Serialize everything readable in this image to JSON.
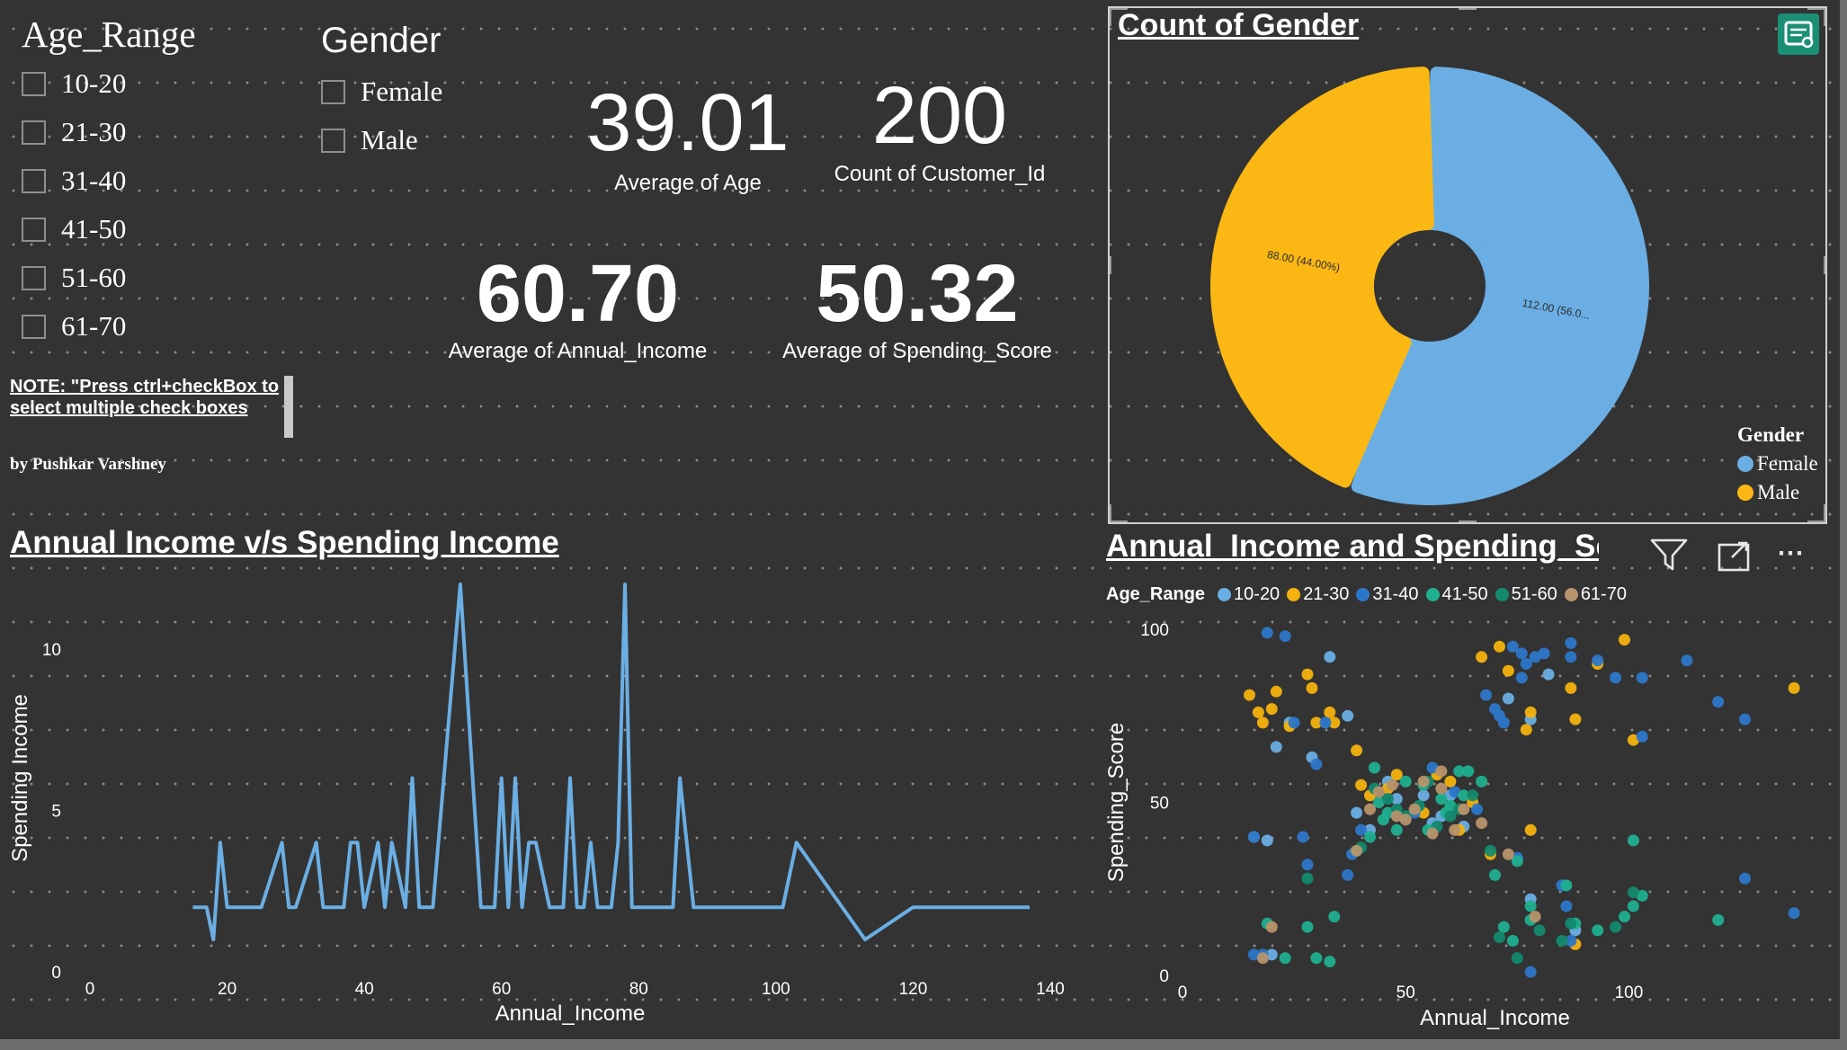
{
  "age_slicer": {
    "title": "Age_Range",
    "items": [
      "10-20",
      "21-30",
      "31-40",
      "41-50",
      "51-60",
      "61-70"
    ]
  },
  "gender_slicer": {
    "title": "Gender",
    "items": [
      "Female",
      "Male"
    ]
  },
  "note": {
    "text": "NOTE: \"Press ctrl+checkBox to select multiple check boxes",
    "author": "by Pushkar Varshney"
  },
  "kpis": {
    "avg_age": {
      "value": "39.01",
      "label": "Average of Age"
    },
    "count_customer": {
      "value": "200",
      "label": "Count of Customer_Id"
    },
    "avg_income": {
      "value": "60.70",
      "label": "Average of Annual_Income"
    },
    "avg_spending": {
      "value": "50.32",
      "label": "Average of Spending_Score"
    }
  },
  "colors": {
    "female": "#6aaee3",
    "male": "#fbb714",
    "line": "#6aaee3",
    "age_ranges": [
      "#6aaee3",
      "#f4b20e",
      "#2d77c9",
      "#1fb08f",
      "#138a6e",
      "#b8946c"
    ]
  },
  "icons": {
    "focus": "focus-mode-icon",
    "filter": "filter-icon",
    "expand": "expand-icon",
    "more": "more-options-icon"
  },
  "chart_data": [
    {
      "type": "pie",
      "title": "Count of Gender",
      "legend_title": "Gender",
      "legend_position": "bottom-right",
      "categories": [
        "Female",
        "Male"
      ],
      "values": [
        112,
        88
      ],
      "data_labels": [
        "112.00 (56.0...",
        "88.00 (44.00%)"
      ]
    },
    {
      "type": "line",
      "title": "Annual Income v/s Spending Income",
      "xlabel": "Annual_Income",
      "ylabel": "Spending Income",
      "xlim": [
        0,
        140
      ],
      "ylim": [
        0,
        12
      ],
      "xticks": [
        0,
        20,
        40,
        60,
        80,
        100,
        120,
        140
      ],
      "yticks": [
        0,
        5,
        10
      ],
      "grid": false,
      "x": [
        15,
        17,
        18,
        19,
        20,
        21,
        23,
        25,
        28,
        29,
        30,
        33,
        34,
        37,
        38,
        39,
        40,
        42,
        43,
        44,
        46,
        47,
        48,
        49,
        50,
        54,
        57,
        58,
        59,
        60,
        61,
        62,
        63,
        64,
        65,
        67,
        69,
        70,
        71,
        72,
        73,
        74,
        75,
        76,
        77,
        78,
        79,
        81,
        85,
        86,
        87,
        88,
        93,
        97,
        101,
        103,
        113,
        120,
        126,
        137
      ],
      "y": [
        2,
        2,
        1,
        4,
        2,
        2,
        2,
        2,
        4,
        2,
        2,
        4,
        2,
        2,
        4,
        4,
        2,
        4,
        2,
        4,
        2,
        6,
        2,
        2,
        2,
        12,
        2,
        2,
        2,
        6,
        2,
        6,
        2,
        4,
        4,
        2,
        2,
        6,
        2,
        2,
        4,
        2,
        2,
        2,
        4,
        12,
        2,
        2,
        2,
        6,
        4,
        2,
        2,
        2,
        2,
        4,
        1,
        2,
        2,
        2
      ]
    },
    {
      "type": "scatter",
      "title": "Annual_Income and Spending_Score by Age_Range",
      "xlabel": "Annual_Income",
      "ylabel": "Spending_Score",
      "xlim": [
        0,
        140
      ],
      "ylim": [
        0,
        100
      ],
      "xticks": [
        0,
        50,
        100
      ],
      "yticks": [
        0,
        50,
        100
      ],
      "legend_title": "Age_Range",
      "legend_position": "top",
      "series": [
        {
          "name": "10-20",
          "points": [
            [
              19,
              39
            ],
            [
              20,
              6
            ],
            [
              21,
              66
            ],
            [
              24,
              73
            ],
            [
              33,
              92
            ],
            [
              37,
              75
            ],
            [
              39,
              47
            ],
            [
              42,
              42
            ],
            [
              46,
              56
            ],
            [
              48,
              51
            ],
            [
              54,
              52
            ],
            [
              56,
              44
            ],
            [
              58,
              46
            ],
            [
              63,
              43
            ],
            [
              73,
              80
            ],
            [
              78,
              74
            ],
            [
              82,
              87
            ],
            [
              88,
              13
            ],
            [
              16,
              40
            ],
            [
              29,
              63
            ],
            [
              60,
              52
            ],
            [
              78,
              22
            ]
          ]
        },
        {
          "name": "21-30",
          "points": [
            [
              15,
              81
            ],
            [
              17,
              76
            ],
            [
              18,
              73
            ],
            [
              20,
              77
            ],
            [
              21,
              82
            ],
            [
              24,
              72
            ],
            [
              28,
              87
            ],
            [
              29,
              83
            ],
            [
              30,
              73
            ],
            [
              33,
              76
            ],
            [
              34,
              73
            ],
            [
              39,
              65
            ],
            [
              40,
              55
            ],
            [
              42,
              52
            ],
            [
              46,
              54
            ],
            [
              48,
              58
            ],
            [
              54,
              47
            ],
            [
              57,
              58
            ],
            [
              60,
              56
            ],
            [
              62,
              42
            ],
            [
              65,
              50
            ],
            [
              69,
              35
            ],
            [
              71,
              95
            ],
            [
              73,
              88
            ],
            [
              77,
              71
            ],
            [
              78,
              42
            ],
            [
              78,
              76
            ],
            [
              88,
              74
            ],
            [
              88,
              9
            ],
            [
              93,
              90
            ],
            [
              99,
              97
            ],
            [
              101,
              68
            ],
            [
              137,
              83
            ],
            [
              67,
              92
            ],
            [
              87,
              83
            ]
          ]
        },
        {
          "name": "31-40",
          "points": [
            [
              16,
              40
            ],
            [
              19,
              99
            ],
            [
              23,
              98
            ],
            [
              25,
              73
            ],
            [
              27,
              40
            ],
            [
              28,
              32
            ],
            [
              30,
              61
            ],
            [
              32,
              73
            ],
            [
              37,
              29
            ],
            [
              38,
              35
            ],
            [
              40,
              42
            ],
            [
              52,
              47
            ],
            [
              56,
              60
            ],
            [
              61,
              53
            ],
            [
              66,
              48
            ],
            [
              70,
              77
            ],
            [
              71,
              75
            ],
            [
              72,
              73
            ],
            [
              74,
              95
            ],
            [
              76,
              86
            ],
            [
              77,
              90
            ],
            [
              79,
              92
            ],
            [
              81,
              93
            ],
            [
              87,
              92
            ],
            [
              87,
              96
            ],
            [
              93,
              91
            ],
            [
              97,
              86
            ],
            [
              103,
              69
            ],
            [
              103,
              86
            ],
            [
              113,
              91
            ],
            [
              120,
              79
            ],
            [
              126,
              74
            ],
            [
              126,
              28
            ],
            [
              137,
              18
            ],
            [
              78,
              1
            ],
            [
              85,
              26
            ],
            [
              86,
              20
            ],
            [
              87,
              10
            ],
            [
              75,
              34
            ],
            [
              76,
              93
            ],
            [
              18,
              6
            ],
            [
              16,
              6
            ],
            [
              68,
              81
            ]
          ]
        },
        {
          "name": "41-50",
          "points": [
            [
              19,
              15
            ],
            [
              23,
              5
            ],
            [
              28,
              14
            ],
            [
              30,
              5
            ],
            [
              33,
              4
            ],
            [
              34,
              17
            ],
            [
              39,
              36
            ],
            [
              42,
              40
            ],
            [
              43,
              60
            ],
            [
              44,
              50
            ],
            [
              46,
              47
            ],
            [
              48,
              42
            ],
            [
              50,
              56
            ],
            [
              54,
              55
            ],
            [
              55,
              42
            ],
            [
              58,
              51
            ],
            [
              60,
              49
            ],
            [
              62,
              59
            ],
            [
              63,
              52
            ],
            [
              64,
              59
            ],
            [
              67,
              56
            ],
            [
              70,
              29
            ],
            [
              72,
              14
            ],
            [
              74,
              10
            ],
            [
              75,
              33
            ],
            [
              78,
              16
            ],
            [
              78,
              20
            ],
            [
              86,
              26
            ],
            [
              88,
              15
            ],
            [
              93,
              13
            ],
            [
              99,
              17
            ],
            [
              101,
              39
            ],
            [
              101,
              20
            ],
            [
              103,
              23
            ],
            [
              120,
              16
            ],
            [
              45,
              45
            ],
            [
              59,
              47
            ]
          ]
        },
        {
          "name": "51-60",
          "points": [
            [
              28,
              28
            ],
            [
              43,
              54
            ],
            [
              46,
              51
            ],
            [
              48,
              48
            ],
            [
              50,
              46
            ],
            [
              53,
              49
            ],
            [
              57,
              43
            ],
            [
              60,
              46
            ],
            [
              62,
              48
            ],
            [
              65,
              52
            ],
            [
              69,
              36
            ],
            [
              71,
              11
            ],
            [
              75,
              5
            ],
            [
              80,
              13
            ],
            [
              85,
              10
            ],
            [
              87,
              15
            ],
            [
              97,
              14
            ],
            [
              101,
              24
            ],
            [
              40,
              37
            ],
            [
              55,
              56
            ]
          ]
        },
        {
          "name": "61-70",
          "points": [
            [
              18,
              5
            ],
            [
              20,
              14
            ],
            [
              39,
              36
            ],
            [
              42,
              48
            ],
            [
              47,
              55
            ],
            [
              48,
              46
            ],
            [
              50,
              45
            ],
            [
              52,
              48
            ],
            [
              54,
              56
            ],
            [
              56,
              41
            ],
            [
              58,
              54
            ],
            [
              61,
              42
            ],
            [
              63,
              48
            ],
            [
              67,
              44
            ],
            [
              73,
              35
            ],
            [
              79,
              17
            ],
            [
              58,
              59
            ],
            [
              44,
              53
            ]
          ]
        }
      ]
    }
  ]
}
